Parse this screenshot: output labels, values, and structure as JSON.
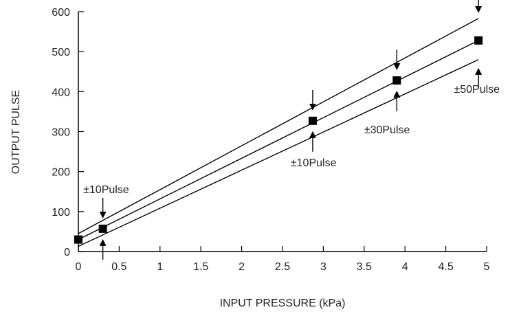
{
  "chart_data": {
    "type": "line",
    "title": "",
    "xlabel": "INPUT PRESSURE (kPa)",
    "ylabel": "OUTPUT PULSE",
    "xlim": [
      0,
      5
    ],
    "ylim": [
      0,
      600
    ],
    "xticks": [
      "0",
      "0.5",
      "1",
      "1.5",
      "2",
      "2.5",
      "3",
      "3.5",
      "4",
      "4.5",
      "5"
    ],
    "yticks": [
      "0",
      "100",
      "200",
      "300",
      "400",
      "500",
      "600"
    ],
    "grid": false,
    "series": [
      {
        "role": "nominal",
        "x": [
          0,
          4.9
        ],
        "y": [
          30,
          528
        ]
      },
      {
        "role": "upper",
        "x": [
          0,
          4.9
        ],
        "y": [
          45,
          583
        ]
      },
      {
        "role": "lower",
        "x": [
          0,
          4.9
        ],
        "y": [
          13,
          480
        ]
      }
    ],
    "points": {
      "x": [
        0,
        0.3,
        2.87,
        3.9,
        4.9
      ],
      "y": [
        30,
        57,
        327,
        428,
        528
      ]
    },
    "tolerance_markers": [
      {
        "x": 0.3,
        "y": 57,
        "gap": 20,
        "length": 25
      },
      {
        "x": 2.87,
        "y": 327,
        "gap": 20,
        "length": 25
      },
      {
        "x": 3.9,
        "y": 428,
        "gap": 20,
        "length": 25
      },
      {
        "x": 4.9,
        "y": 528,
        "gap": 45,
        "length": 25
      }
    ],
    "annotations": [
      {
        "text": "±10Pulse",
        "x": 0.06,
        "y": 146
      },
      {
        "text": "±10Pulse",
        "x": 2.6,
        "y": 213
      },
      {
        "text": "±30Pulse",
        "x": 3.5,
        "y": 296
      },
      {
        "text": "±50Pulse",
        "x": 4.6,
        "y": 397
      }
    ]
  }
}
